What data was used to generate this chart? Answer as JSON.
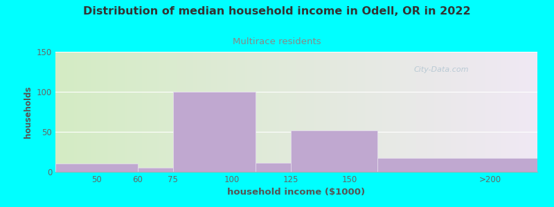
{
  "title": "Distribution of median household income in Odell, OR in 2022",
  "subtitle": "Multirace residents",
  "xlabel": "household income ($1000)",
  "ylabel": "households",
  "background_color": "#00FFFF",
  "plot_bg_gradient_left": "#d4ecc4",
  "plot_bg_gradient_right": "#f0e8f4",
  "bar_color": "#c0a8d0",
  "bar_edge_color": "#e8e0f0",
  "title_color": "#333333",
  "subtitle_color": "#888888",
  "axis_label_color": "#555555",
  "tick_color": "#666666",
  "watermark": "City-Data.com",
  "ylim": [
    0,
    150
  ],
  "yticks": [
    0,
    50,
    100,
    150
  ],
  "xtick_positions": [
    42.5,
    60,
    75,
    100,
    125,
    150,
    210
  ],
  "xtick_labels": [
    "50",
    "60",
    "75",
    "100",
    "125",
    "150",
    ">200"
  ],
  "bar_lefts": [
    25,
    60,
    75,
    110,
    125,
    162
  ],
  "bar_widths": [
    35,
    15,
    35,
    15,
    37,
    68
  ],
  "bar_heights": [
    10,
    5,
    100,
    11,
    52,
    17
  ],
  "xmin": 25,
  "xmax": 230
}
